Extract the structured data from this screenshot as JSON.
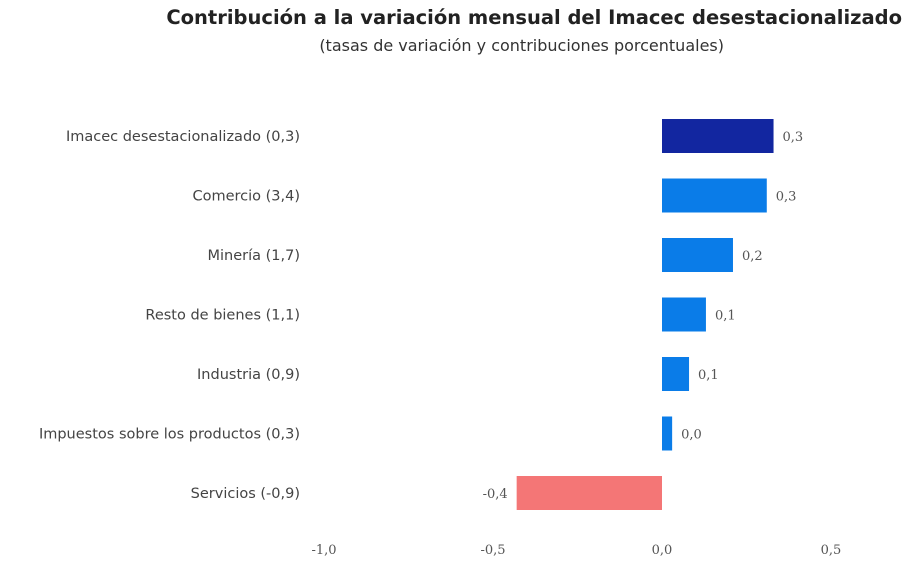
{
  "chart_data": {
    "type": "bar",
    "orientation": "horizontal",
    "title": "Contribución a la variación mensual del Imacec desestacionalizado",
    "subtitle": "(tasas de variación y contribuciones porcentuales)",
    "categories": [
      "Imacec desestacionalizado (0,3)",
      "Comercio (3,4)",
      "Minería (1,7)",
      "Resto de bienes (1,1)",
      "Industria (0,9)",
      "Impuestos sobre los productos (0,3)",
      "Servicios (-0,9)"
    ],
    "values": [
      0.33,
      0.31,
      0.21,
      0.13,
      0.08,
      0.03,
      -0.43
    ],
    "data_labels": [
      "0,3",
      "0,3",
      "0,2",
      "0,1",
      "0,1",
      "0,0",
      "-0,4"
    ],
    "colors": [
      "#1226a0",
      "#0a7ce8",
      "#0a7ce8",
      "#0a7ce8",
      "#0a7ce8",
      "#0a7ce8",
      "#f47676"
    ],
    "xlim": [
      -1.0,
      0.5
    ],
    "xticks": [
      -1.0,
      -0.5,
      0.0,
      0.5
    ],
    "xtick_labels": [
      "-1,0",
      "-0,5",
      "0,0",
      "0,5"
    ],
    "grid": false,
    "legend": "none"
  }
}
